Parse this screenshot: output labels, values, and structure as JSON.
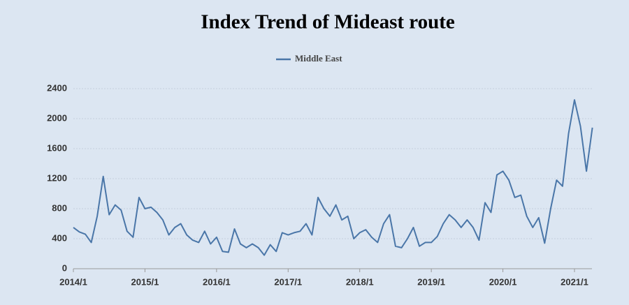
{
  "chart_data": {
    "type": "line",
    "title": "Index Trend of Mideast route",
    "categories": [
      "2014/1",
      null,
      null,
      null,
      null,
      null,
      null,
      null,
      null,
      null,
      null,
      null,
      "2015/1",
      null,
      null,
      null,
      null,
      null,
      null,
      null,
      null,
      null,
      null,
      null,
      "2016/1",
      null,
      null,
      null,
      null,
      null,
      null,
      null,
      null,
      null,
      null,
      null,
      "2017/1",
      null,
      null,
      null,
      null,
      null,
      null,
      null,
      null,
      null,
      null,
      null,
      "2018/1",
      null,
      null,
      null,
      null,
      null,
      null,
      null,
      null,
      null,
      null,
      null,
      "2019/1",
      null,
      null,
      null,
      null,
      null,
      null,
      null,
      null,
      null,
      null,
      null,
      "2020/1",
      null,
      null,
      null,
      null,
      null,
      null,
      null,
      null,
      null,
      null,
      null,
      "2021/1",
      null,
      null,
      null
    ],
    "series": [
      {
        "name": "Middle East",
        "color": "#4a76a8",
        "values": [
          550,
          490,
          460,
          350,
          700,
          1230,
          720,
          850,
          780,
          500,
          420,
          950,
          800,
          820,
          750,
          650,
          450,
          550,
          600,
          450,
          380,
          350,
          500,
          330,
          420,
          230,
          220,
          530,
          330,
          280,
          330,
          280,
          180,
          320,
          230,
          480,
          450,
          480,
          500,
          600,
          450,
          950,
          800,
          700,
          850,
          650,
          700,
          400,
          480,
          520,
          420,
          350,
          600,
          720,
          300,
          280,
          400,
          550,
          300,
          350,
          350,
          430,
          600,
          720,
          650,
          550,
          650,
          550,
          380,
          880,
          750,
          1250,
          1300,
          1180,
          950,
          980,
          700,
          550,
          680,
          340,
          800,
          1180,
          1100,
          1800,
          2250,
          1900,
          1300,
          1880
        ]
      }
    ],
    "ylim": [
      0,
      2400
    ],
    "yticks": [
      0,
      400,
      800,
      1200,
      1600,
      2000,
      2400
    ],
    "grid": true
  }
}
